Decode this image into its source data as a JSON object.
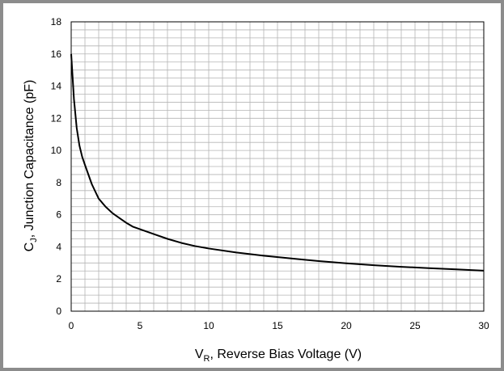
{
  "chart_data": {
    "type": "line",
    "xlabel": {
      "main": "V",
      "sub": "R",
      "rest": ", Reverse Bias Voltage (V)"
    },
    "ylabel": {
      "main": "C",
      "sub": "J",
      "rest": ", Junction Capacitance (pF)"
    },
    "xlim": [
      0,
      30
    ],
    "ylim": [
      0,
      18
    ],
    "x_ticks": [
      "0",
      "5",
      "10",
      "15",
      "20",
      "25",
      "30"
    ],
    "y_ticks": [
      "0",
      "2",
      "4",
      "6",
      "8",
      "10",
      "12",
      "14",
      "16",
      "18"
    ],
    "grid": true,
    "grid_minor_x": 1,
    "grid_minor_y": 0.5,
    "line_color": "#000000",
    "grid_color": "#b4b4b4",
    "frame_color": "#8c8c8c",
    "series": [
      {
        "x": [
          0,
          0.2,
          0.4,
          0.6,
          0.8,
          1,
          1.5,
          2,
          2.5,
          3,
          3.5,
          4,
          4.5,
          5,
          6,
          7,
          8,
          9,
          10,
          12,
          14,
          16,
          18,
          20,
          22,
          24,
          26,
          28,
          30
        ],
        "y": [
          16,
          13.2,
          11.4,
          10.3,
          9.6,
          9.1,
          7.9,
          7.0,
          6.5,
          6.1,
          5.8,
          5.5,
          5.25,
          5.1,
          4.8,
          4.5,
          4.25,
          4.05,
          3.9,
          3.65,
          3.45,
          3.28,
          3.12,
          2.98,
          2.86,
          2.76,
          2.68,
          2.6,
          2.52
        ]
      }
    ]
  }
}
